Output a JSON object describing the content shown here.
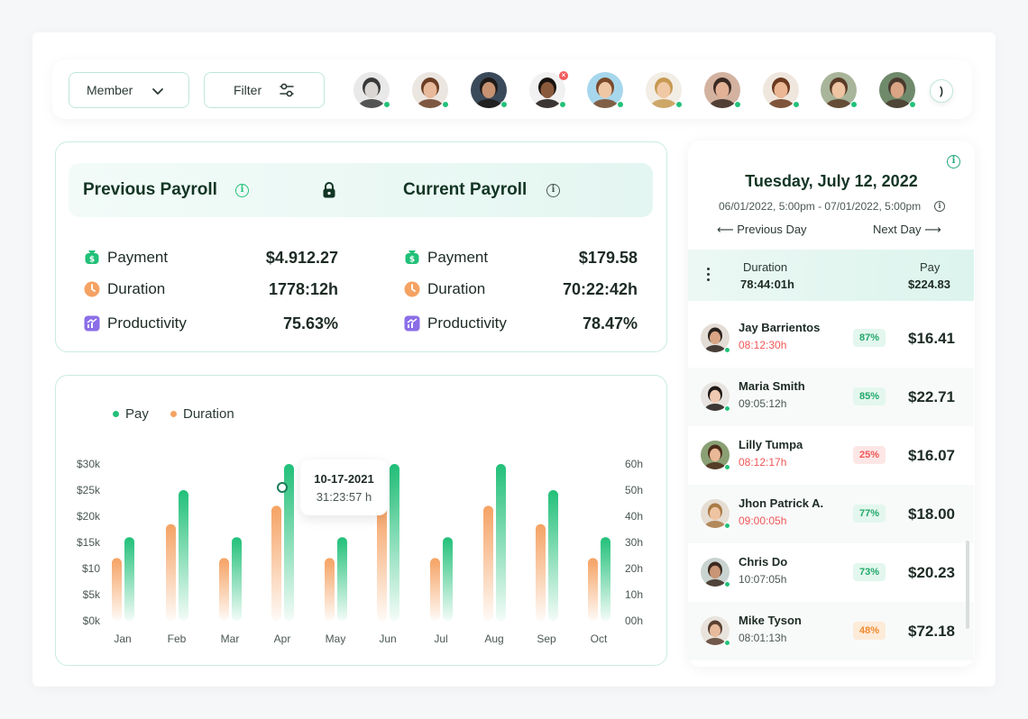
{
  "toolbar": {
    "member_label": "Member",
    "filter_label": "Filter",
    "more_label": ")"
  },
  "avatars": [
    {
      "name": "avatar-1",
      "skin": "#d9d6d3",
      "hair": "#3a3a3a",
      "bg": "#e9e9e9"
    },
    {
      "name": "avatar-2",
      "skin": "#e8b99a",
      "hair": "#6b3e24",
      "bg": "#ece6e1"
    },
    {
      "name": "avatar-3",
      "skin": "#c79372",
      "hair": "#1f1a17",
      "bg": "#3b4a5a"
    },
    {
      "name": "avatar-4",
      "skin": "#8a5a3c",
      "hair": "#1a1411",
      "bg": "#f1f1f1"
    },
    {
      "name": "avatar-5",
      "skin": "#f0c7a5",
      "hair": "#7a4a2a",
      "bg": "#a7d7ec"
    },
    {
      "name": "avatar-6",
      "skin": "#f1c8a4",
      "hair": "#c79a52",
      "bg": "#f2ede5"
    },
    {
      "name": "avatar-7",
      "skin": "#e2b196",
      "hair": "#3a2a22",
      "bg": "#d3b2a0"
    },
    {
      "name": "avatar-8",
      "skin": "#eab693",
      "hair": "#6b3a1f",
      "bg": "#efe7de"
    },
    {
      "name": "avatar-9",
      "skin": "#efc4a3",
      "hair": "#5a3b26",
      "bg": "#a8b59a"
    },
    {
      "name": "avatar-10",
      "skin": "#d9a585",
      "hair": "#4a3a2e",
      "bg": "#6f8a6a"
    }
  ],
  "payroll": {
    "previous_title": "Previous Payroll",
    "current_title": "Current Payroll",
    "previous": [
      {
        "label": "Payment",
        "value": "$4.912.27"
      },
      {
        "label": "Duration",
        "value": "1778:12h"
      },
      {
        "label": "Productivity",
        "value": "75.63%"
      }
    ],
    "current": [
      {
        "label": "Payment",
        "value": "$179.58"
      },
      {
        "label": "Duration",
        "value": "70:22:42h"
      },
      {
        "label": "Productivity",
        "value": "78.47%"
      }
    ]
  },
  "chart_data": {
    "type": "bar",
    "categories": [
      "Jan",
      "Feb",
      "Mar",
      "Apr",
      "May",
      "Jun",
      "Jul",
      "Aug",
      "Sep",
      "Oct"
    ],
    "series": [
      {
        "name": "Pay",
        "axis": "left",
        "color": "#22c079",
        "values": [
          16,
          25,
          16,
          30,
          16,
          30,
          16,
          30,
          25,
          16
        ]
      },
      {
        "name": "Duration",
        "axis": "right",
        "color": "#f5a263",
        "values": [
          24,
          37,
          24,
          44,
          24,
          44,
          24,
          44,
          37,
          24
        ]
      }
    ],
    "y_left_ticks": [
      "$0k",
      "$5k",
      "$10",
      "$15k",
      "$20k",
      "$25k",
      "$30k"
    ],
    "y_right_ticks": [
      "00h",
      "10h",
      "20h",
      "30h",
      "40h",
      "50h",
      "60h"
    ],
    "ylim_left": [
      0,
      30
    ],
    "ylim_right": [
      0,
      60
    ],
    "legend": [
      "Pay",
      "Duration"
    ],
    "legend_position": "top-left",
    "tooltip": {
      "date": "10-17-2021",
      "value": "31:23:57 h",
      "category": "Apr"
    }
  },
  "day_panel": {
    "date_title": "Tuesday, July 12, 2022",
    "date_range": "06/01/2022, 5:00pm - 07/01/2022, 5:00pm",
    "prev_day": "⟵ Previous Day",
    "next_day": "Next Day ⟶",
    "duration_label": "Duration",
    "duration_value": "78:44:01h",
    "pay_label": "Pay",
    "pay_value": "$224.83"
  },
  "colors": {
    "accent": "#22c079",
    "orange": "#f5a263",
    "red": "#f05757",
    "dark_green": "#123524"
  },
  "people": [
    {
      "name": "Jay Barrientos",
      "time": "08:12:30h",
      "time_color": "#f05757",
      "pct": "87%",
      "badge": "green",
      "amount": "$16.41",
      "skin": "#d9a585",
      "hair": "#2b221c",
      "bg": "#e4ddd6"
    },
    {
      "name": "Maria Smith",
      "time": "09:05:12h",
      "time_color": "#4a5851",
      "pct": "85%",
      "badge": "green",
      "amount": "$22.71",
      "skin": "#efc9b0",
      "hair": "#1e1916",
      "bg": "#e8e4e1"
    },
    {
      "name": "Lilly Tumpa",
      "time": "08:12:17h",
      "time_color": "#f05757",
      "pct": "25%",
      "badge": "red",
      "amount": "$16.07",
      "skin": "#e9b897",
      "hair": "#4b2c1b",
      "bg": "#8aa074"
    },
    {
      "name": "Jhon Patrick A.",
      "time": "09:00:05h",
      "time_color": "#f05757",
      "pct": "77%",
      "badge": "green",
      "amount": "$18.00",
      "skin": "#efc4a2",
      "hair": "#a87a45",
      "bg": "#e6ddd3"
    },
    {
      "name": "Chris Do",
      "time": "10:07:05h",
      "time_color": "#4a5851",
      "pct": "73%",
      "badge": "green",
      "amount": "$20.23",
      "skin": "#c99676",
      "hair": "#3b2a20",
      "bg": "#c9d3cf"
    },
    {
      "name": "Mike Tyson",
      "time": "08:01:13h",
      "time_color": "#4a5851",
      "pct": "48%",
      "badge": "orange",
      "amount": "$72.18",
      "skin": "#e7bb9c",
      "hair": "#5a4030",
      "bg": "#e8e3dc"
    }
  ]
}
